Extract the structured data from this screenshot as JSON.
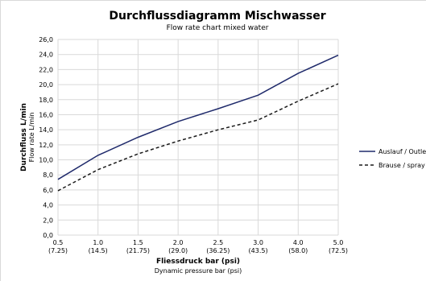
{
  "chart_data": {
    "type": "line",
    "title": "Durchflussdiagramm Mischwasser",
    "subtitle": "Flow rate chart mixed water",
    "xlabel": "Fliessdruck bar (psi)",
    "xlabel_sub": "Dynamic pressure bar (psi)",
    "ylabel": "Durchfluss L/min",
    "ylabel_sub": "Flow rate L/min",
    "categories": [
      [
        "0.5",
        "(7.25)"
      ],
      [
        "1.0",
        "(14.5)"
      ],
      [
        "1.5",
        "(21.75)"
      ],
      [
        "2.0",
        "(29.0)"
      ],
      [
        "2.5",
        "(36.25)"
      ],
      [
        "3.0",
        "(43.5)"
      ],
      [
        "4.0",
        "(58.0)"
      ],
      [
        "5.0",
        "(72.5)"
      ]
    ],
    "y_ticks": [
      "0,0",
      "2,0",
      "4,0",
      "6,0",
      "8,0",
      "10,0",
      "12,0",
      "14,0",
      "16,0",
      "18,0",
      "20,0",
      "22,0",
      "24,0",
      "26,0"
    ],
    "ylim": [
      0,
      26
    ],
    "grid": true,
    "legend_position": "right",
    "series": [
      {
        "name": "Auslauf / Outlet",
        "color": "#1f2a6b",
        "dash": "solid",
        "values": [
          7.4,
          10.6,
          13.0,
          15.1,
          16.8,
          18.6,
          21.5,
          23.9
        ]
      },
      {
        "name": "Brause / spray",
        "color": "#1a1a1a",
        "dash": "dashed",
        "values": [
          5.9,
          8.7,
          10.8,
          12.5,
          14.0,
          15.3,
          17.8,
          20.1
        ]
      }
    ]
  }
}
